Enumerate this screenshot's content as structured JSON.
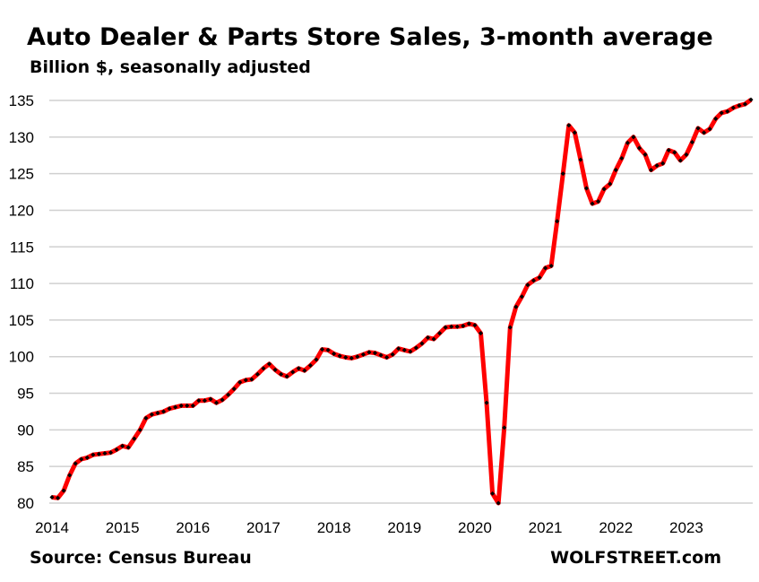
{
  "chart_data": {
    "type": "line",
    "title": "Auto Dealer & Parts Store Sales, 3-month average",
    "subtitle": "Billion $, seasonally adjusted",
    "xlabel": "",
    "ylabel": "Billion $",
    "ylim": [
      80,
      135
    ],
    "yticks": [
      "80",
      "85",
      "90",
      "95",
      "100",
      "105",
      "110",
      "115",
      "120",
      "125",
      "130",
      "135"
    ],
    "xticks": [
      "2014",
      "2015",
      "2016",
      "2017",
      "2018",
      "2019",
      "2020",
      "2021",
      "2022",
      "2023"
    ],
    "grid": true,
    "series": [
      {
        "name": "Auto Dealer & Parts Store Sales",
        "color": "#ff0000",
        "marker_color": "#000000",
        "start": "2014-01",
        "frequency": "monthly",
        "values": [
          80.8,
          80.7,
          81.7,
          83.8,
          85.4,
          86.0,
          86.2,
          86.6,
          86.7,
          86.8,
          86.9,
          87.3,
          87.8,
          87.6,
          88.8,
          90.0,
          91.6,
          92.1,
          92.3,
          92.5,
          92.9,
          93.1,
          93.3,
          93.3,
          93.3,
          94.0,
          94.0,
          94.2,
          93.7,
          94.1,
          94.8,
          95.6,
          96.5,
          96.8,
          96.9,
          97.6,
          98.4,
          99.0,
          98.2,
          97.6,
          97.3,
          97.9,
          98.4,
          98.1,
          98.8,
          99.6,
          101.0,
          100.9,
          100.4,
          100.1,
          99.9,
          99.8,
          100.0,
          100.3,
          100.6,
          100.5,
          100.2,
          99.9,
          100.3,
          101.1,
          100.9,
          100.7,
          101.2,
          101.8,
          102.6,
          102.4,
          103.2,
          104.0,
          104.1,
          104.1,
          104.2,
          104.5,
          104.3,
          103.2,
          93.7,
          81.3,
          80.0,
          90.3,
          104.0,
          106.8,
          108.2,
          109.8,
          110.4,
          110.8,
          112.1,
          112.4,
          118.5,
          125.0,
          131.6,
          130.6,
          126.9,
          123.0,
          120.9,
          121.2,
          122.9,
          123.6,
          125.5,
          127.1,
          129.2,
          130.0,
          128.5,
          127.6,
          125.5,
          126.1,
          126.4,
          128.2,
          127.9,
          126.8,
          127.6,
          129.3,
          131.2,
          130.6,
          131.1,
          132.5,
          133.3,
          133.5,
          134.0,
          134.3,
          134.5,
          135.1
        ]
      }
    ]
  },
  "footer": {
    "source": "Source: Census Bureau",
    "brand": "WOLFSTREET.com"
  }
}
